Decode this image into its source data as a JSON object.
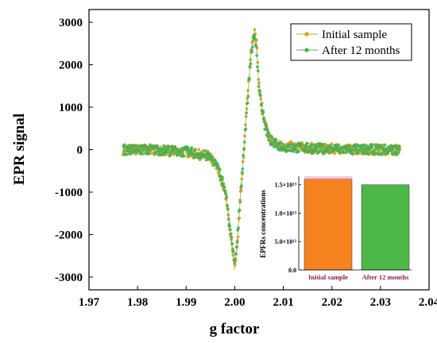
{
  "chart_data": [
    {
      "type": "scatter",
      "title": "",
      "xlabel": "g factor",
      "ylabel": "EPR signal",
      "xlim": [
        1.97,
        2.04
      ],
      "ylim": [
        -3300,
        3300
      ],
      "xticks": [
        "1.97",
        "1.98",
        "1.99",
        "2.00",
        "2.01",
        "2.02",
        "2.03",
        "2.04"
      ],
      "yticks": [
        "3000",
        "2000",
        "1000",
        "0",
        "-1000",
        "-2000",
        "-3000"
      ],
      "grid": false,
      "legend": "top-right",
      "series": [
        {
          "name": "Initial sample",
          "color": "#d4a020",
          "marker": "circle",
          "x": [
            1.977,
            1.98,
            1.984,
            1.988,
            1.99,
            1.992,
            1.994,
            1.995,
            1.996,
            1.997,
            1.998,
            1.9985,
            1.999,
            1.9995,
            2.0,
            2.0005,
            2.001,
            2.0015,
            2.002,
            2.0025,
            2.003,
            2.0035,
            2.004,
            2.0045,
            2.005,
            2.006,
            2.007,
            2.008,
            2.01,
            2.015,
            2.02,
            2.025,
            2.03,
            2.034
          ],
          "y": [
            0,
            0,
            0,
            -50,
            -50,
            -100,
            -150,
            -200,
            -350,
            -600,
            -1000,
            -1400,
            -1900,
            -2400,
            -2850,
            -2300,
            -1400,
            -600,
            200,
            1000,
            1800,
            2500,
            2800,
            2500,
            1500,
            700,
            300,
            150,
            80,
            40,
            20,
            10,
            0,
            0
          ]
        },
        {
          "name": "After 12 months",
          "color": "#4caf50",
          "marker": "circle",
          "x": [
            1.977,
            1.98,
            1.984,
            1.988,
            1.99,
            1.992,
            1.994,
            1.995,
            1.996,
            1.997,
            1.998,
            1.9985,
            1.999,
            1.9995,
            2.0,
            2.0005,
            2.001,
            2.0015,
            2.002,
            2.0025,
            2.003,
            2.0035,
            2.004,
            2.0045,
            2.005,
            2.006,
            2.007,
            2.008,
            2.01,
            2.015,
            2.02,
            2.025,
            2.03,
            2.034
          ],
          "y": [
            0,
            0,
            0,
            -40,
            -50,
            -90,
            -140,
            -190,
            -330,
            -560,
            -950,
            -1350,
            -1800,
            -2300,
            -2700,
            -2200,
            -1350,
            -550,
            200,
            950,
            1700,
            2400,
            2650,
            2400,
            1450,
            650,
            280,
            140,
            70,
            30,
            15,
            5,
            0,
            0
          ]
        }
      ]
    },
    {
      "type": "bar",
      "title": "",
      "xlabel": "",
      "ylabel": "EPFRs concentrations",
      "ylim": [
        0,
        16500000000000.0
      ],
      "yticks": [
        "0.0",
        "5.0×10¹²",
        "1.0×10¹³",
        "1.5×10¹³"
      ],
      "categories": [
        "Initial sample",
        "After 12 months"
      ],
      "values": [
        16000000000000.0,
        15000000000000.0
      ],
      "error": [
        1000000000000.0,
        0
      ],
      "colors": [
        "#f5821f",
        "#4db848"
      ],
      "label_colors": [
        "#8b1a5a",
        "#8b1a5a"
      ]
    }
  ]
}
